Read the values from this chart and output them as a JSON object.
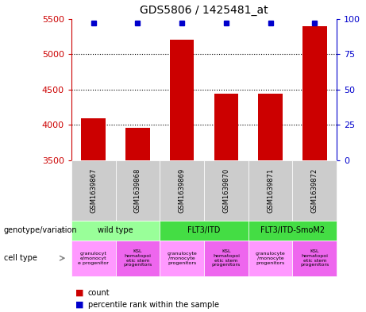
{
  "title": "GDS5806 / 1425481_at",
  "samples": [
    "GSM1639867",
    "GSM1639868",
    "GSM1639869",
    "GSM1639870",
    "GSM1639871",
    "GSM1639872"
  ],
  "counts": [
    4090,
    3960,
    5200,
    4440,
    4440,
    5390
  ],
  "percentiles": [
    97,
    97,
    97,
    97,
    97,
    97
  ],
  "ymin": 3500,
  "ymax": 5500,
  "yticks": [
    3500,
    4000,
    4500,
    5000,
    5500
  ],
  "y2ticks": [
    0,
    25,
    50,
    75,
    100
  ],
  "bar_color": "#cc0000",
  "dot_color": "#0000cc",
  "yaxis_color": "#cc0000",
  "y2axis_color": "#0000cc",
  "genotype_groups": [
    {
      "label": "wild type",
      "start": 0,
      "end": 1,
      "color": "#99ff99"
    },
    {
      "label": "FLT3/ITD",
      "start": 2,
      "end": 3,
      "color": "#44dd44"
    },
    {
      "label": "FLT3/ITD-SmoM2",
      "start": 4,
      "end": 5,
      "color": "#44dd44"
    }
  ],
  "cell_colors": [
    "#ff99ff",
    "#ee66ee",
    "#ff99ff",
    "#ee66ee",
    "#ff99ff",
    "#ee66ee"
  ],
  "cell_labels": [
    "granulocyt\ne/monocyt\ne progenitor",
    "KSL\nhematopoi\netic stem\nprogenitors",
    "granulocyte\n/monocyte\nprogenitors",
    "KSL\nhematopoi\netic stem\nprogenitors",
    "granulocyte\n/monocyte\nprogenitors",
    "KSL\nhematopoi\netic stem\nprogenitors"
  ],
  "sample_bg_color": "#cccccc",
  "fig_width": 4.61,
  "fig_height": 3.93,
  "dpi": 100
}
